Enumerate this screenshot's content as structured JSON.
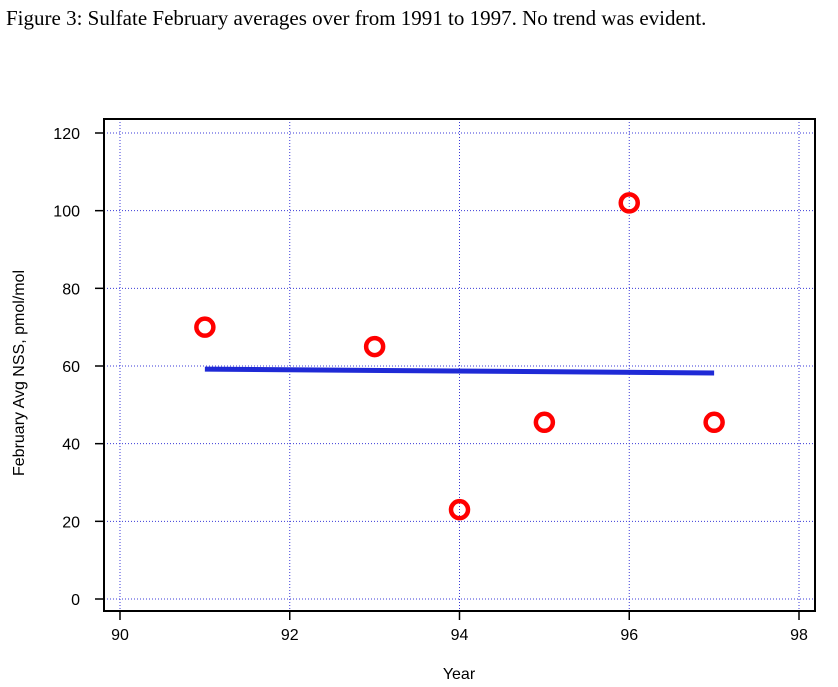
{
  "caption": "Figure 3: Sulfate February averages over from 1991 to 1997. No trend was evident.",
  "colors": {
    "points": "#ff0000",
    "trend": "#1f2ad6",
    "grid": "#3a3ad8",
    "axis": "#000000"
  },
  "chart_data": {
    "type": "scatter",
    "xlabel": "Year",
    "ylabel": "February Avg NSS, pmol/mol",
    "xlim": [
      90,
      98
    ],
    "ylim": [
      0,
      120
    ],
    "xticks": [
      90,
      92,
      94,
      96,
      98
    ],
    "yticks": [
      0,
      20,
      40,
      60,
      80,
      100,
      120
    ],
    "grid": true,
    "points": {
      "marker": "open-circle",
      "x": [
        91,
        93,
        94,
        95,
        96,
        97
      ],
      "y": [
        70,
        65,
        23,
        45.5,
        102,
        45.5
      ]
    },
    "trend_line": {
      "x": [
        91,
        97
      ],
      "y": [
        59.2,
        58.2
      ]
    }
  }
}
